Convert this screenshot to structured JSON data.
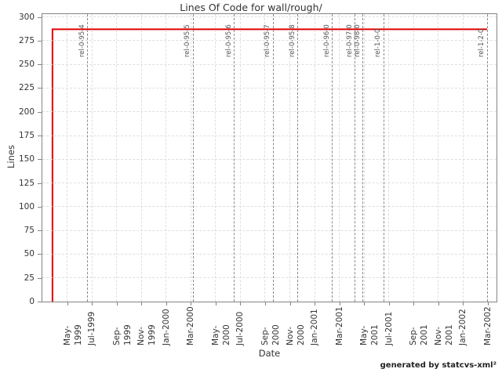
{
  "footer": "generated by statcvs-xml²",
  "chart_data": {
    "type": "line",
    "title": "Lines Of Code for wall/rough/",
    "xlabel": "Date",
    "ylabel": "Lines",
    "legend": "none",
    "grid": "dashed",
    "ylim": [
      0,
      303
    ],
    "y_ticks": [
      0,
      25,
      50,
      75,
      100,
      125,
      150,
      175,
      200,
      225,
      250,
      275,
      300
    ],
    "t_unit": "months since axis origin (Mar-1999)",
    "x_range_months": [
      0,
      36.7
    ],
    "x_ticks": [
      {
        "label": "May-1999",
        "t": 2
      },
      {
        "label": "Jul-1999",
        "t": 4
      },
      {
        "label": "Sep-1999",
        "t": 6
      },
      {
        "label": "Nov-1999",
        "t": 8
      },
      {
        "label": "Jan-2000",
        "t": 10
      },
      {
        "label": "Mar-2000",
        "t": 12
      },
      {
        "label": "May-2000",
        "t": 14
      },
      {
        "label": "Jul-2000",
        "t": 16
      },
      {
        "label": "Sep-2000",
        "t": 18
      },
      {
        "label": "Nov-2000",
        "t": 20
      },
      {
        "label": "Jan-2001",
        "t": 22
      },
      {
        "label": "Mar-2001",
        "t": 24
      },
      {
        "label": "May-2001",
        "t": 26
      },
      {
        "label": "Jul-2001",
        "t": 28
      },
      {
        "label": "Sep-2001",
        "t": 30
      },
      {
        "label": "Nov-2001",
        "t": 32
      },
      {
        "label": "Jan-2002",
        "t": 34
      },
      {
        "label": "Mar-2002",
        "t": 36
      }
    ],
    "series": [
      {
        "name": "Lines of Code",
        "color": "#e10000",
        "points": [
          [
            0.82,
            0
          ],
          [
            0.82,
            287
          ],
          [
            35.94,
            287
          ]
        ]
      }
    ],
    "releases": [
      {
        "label": "rel-0-95-4",
        "t": 3.66
      },
      {
        "label": "rel-0-95-5",
        "t": 12.2
      },
      {
        "label": "rel-0-95-6",
        "t": 15.5
      },
      {
        "label": "rel-0-95-7",
        "t": 18.64
      },
      {
        "label": "rel-0-95-8",
        "t": 20.66
      },
      {
        "label": "rel-0-96-0",
        "t": 23.44
      },
      {
        "label": "rel-0-97-0",
        "t": 25.27
      },
      {
        "label": "rel-0-98-0",
        "t": 25.9
      },
      {
        "label": "rel-1-0-0",
        "t": 27.6
      },
      {
        "label": "rel-1-2-0",
        "t": 35.94
      }
    ]
  }
}
